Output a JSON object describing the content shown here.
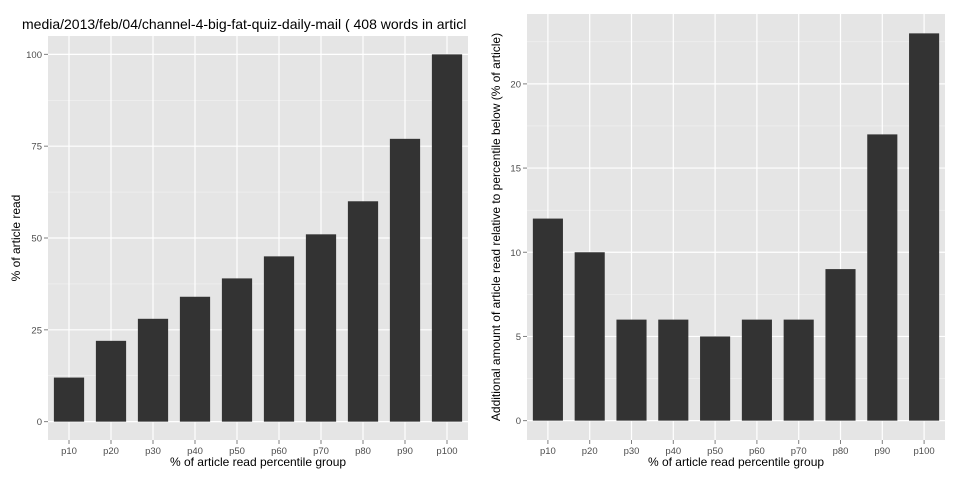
{
  "chart_data": [
    {
      "type": "bar",
      "title": "media/2013/feb/04/channel-4-big-fat-quiz-daily-mail ( 408 words in articl",
      "xlabel": "% of article read percentile group",
      "ylabel": "% of article read",
      "categories": [
        "p10",
        "p20",
        "p30",
        "p40",
        "p50",
        "p60",
        "p70",
        "p80",
        "p90",
        "p100"
      ],
      "values": [
        12,
        22,
        28,
        34,
        39,
        45,
        51,
        60,
        77,
        100
      ],
      "yticks": [
        0,
        25,
        50,
        75,
        100
      ],
      "ylim": [
        -5,
        105
      ],
      "grid": true,
      "bar_color": "#333333",
      "panel_color": "#e5e5e5"
    },
    {
      "type": "bar",
      "title": "",
      "xlabel": "% of article read percentile group",
      "ylabel": "Additional amount of article read relative to percentile below (% of article)",
      "categories": [
        "p10",
        "p20",
        "p30",
        "p40",
        "p50",
        "p60",
        "p70",
        "p80",
        "p90",
        "p100"
      ],
      "values": [
        12,
        10,
        6,
        6,
        5,
        6,
        6,
        9,
        17,
        23
      ],
      "yticks": [
        0,
        5,
        10,
        15,
        20
      ],
      "ylim": [
        -1.15,
        24.15
      ],
      "grid": true,
      "bar_color": "#333333",
      "panel_color": "#e5e5e5"
    }
  ]
}
